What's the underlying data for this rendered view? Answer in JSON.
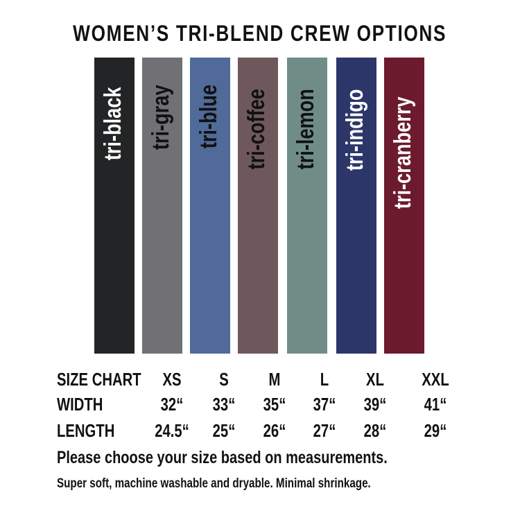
{
  "title": "WOMEN’S TRI-BLEND CREW OPTIONS",
  "swatches": [
    {
      "label": "tri-black",
      "color": "#232425",
      "text_color": "#ffffff"
    },
    {
      "label": "tri-gray",
      "color": "#717075",
      "text_color": "#111111"
    },
    {
      "label": "tri-blue",
      "color": "#506b99",
      "text_color": "#111111"
    },
    {
      "label": "tri-coffee",
      "color": "#6f585b",
      "text_color": "#111111"
    },
    {
      "label": "tri-lemon",
      "color": "#6f8d86",
      "text_color": "#111111"
    },
    {
      "label": "tri-indigo",
      "color": "#2c3668",
      "text_color": "#ffffff"
    },
    {
      "label": "tri-cranberry",
      "color": "#6c1a2d",
      "text_color": "#ffffff"
    }
  ],
  "size_chart": {
    "rows": [
      {
        "label": "SIZE CHART",
        "values": [
          "XS",
          "S",
          "M",
          "L",
          "XL",
          "XXL"
        ]
      },
      {
        "label": "WIDTH",
        "values": [
          "32“",
          "33“",
          "35“",
          "37“",
          "39“",
          "41“"
        ]
      },
      {
        "label": "LENGTH",
        "values": [
          "24.5“",
          "25“",
          "26“",
          "27“",
          "28“",
          "29“"
        ]
      }
    ]
  },
  "note_primary": "Please choose your size based on measurements.",
  "note_secondary": "Super soft, machine washable and dryable. Minimal shrinkage."
}
